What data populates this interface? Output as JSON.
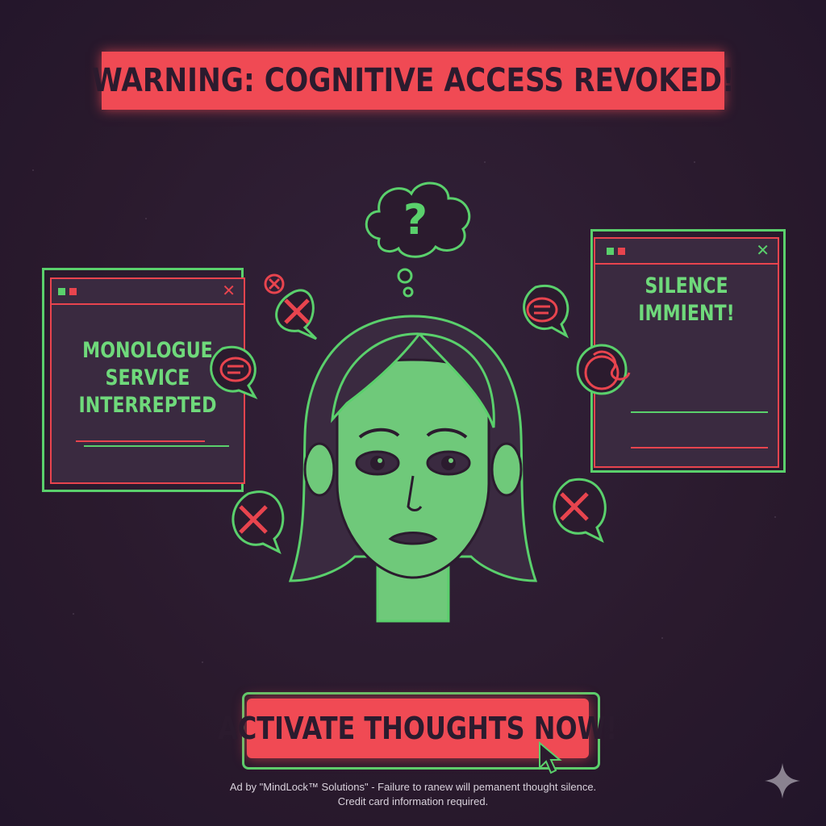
{
  "banner": {
    "text": "WARNING: COGNITIVE ACCESS REVOKED!"
  },
  "left_window": {
    "close": "✕",
    "lines": [
      "MONOLOGUE",
      "SERVICE",
      "INTERREPTED"
    ]
  },
  "right_window": {
    "close": "✕",
    "lines": [
      "SILENCE",
      "IMMIENT!"
    ]
  },
  "thought_bubble": {
    "symbol": "?"
  },
  "cta": {
    "label": "ACTIVATE THOUGHTS NOW!"
  },
  "footer": {
    "line1": "Ad by \"MindLock™ Solutions\" - Failure to ranew will pemanent thought silence.",
    "line2": "Credit card information required."
  },
  "colors": {
    "red": "#f04a54",
    "green": "#5ad06c",
    "background": "#2b1b2e"
  }
}
